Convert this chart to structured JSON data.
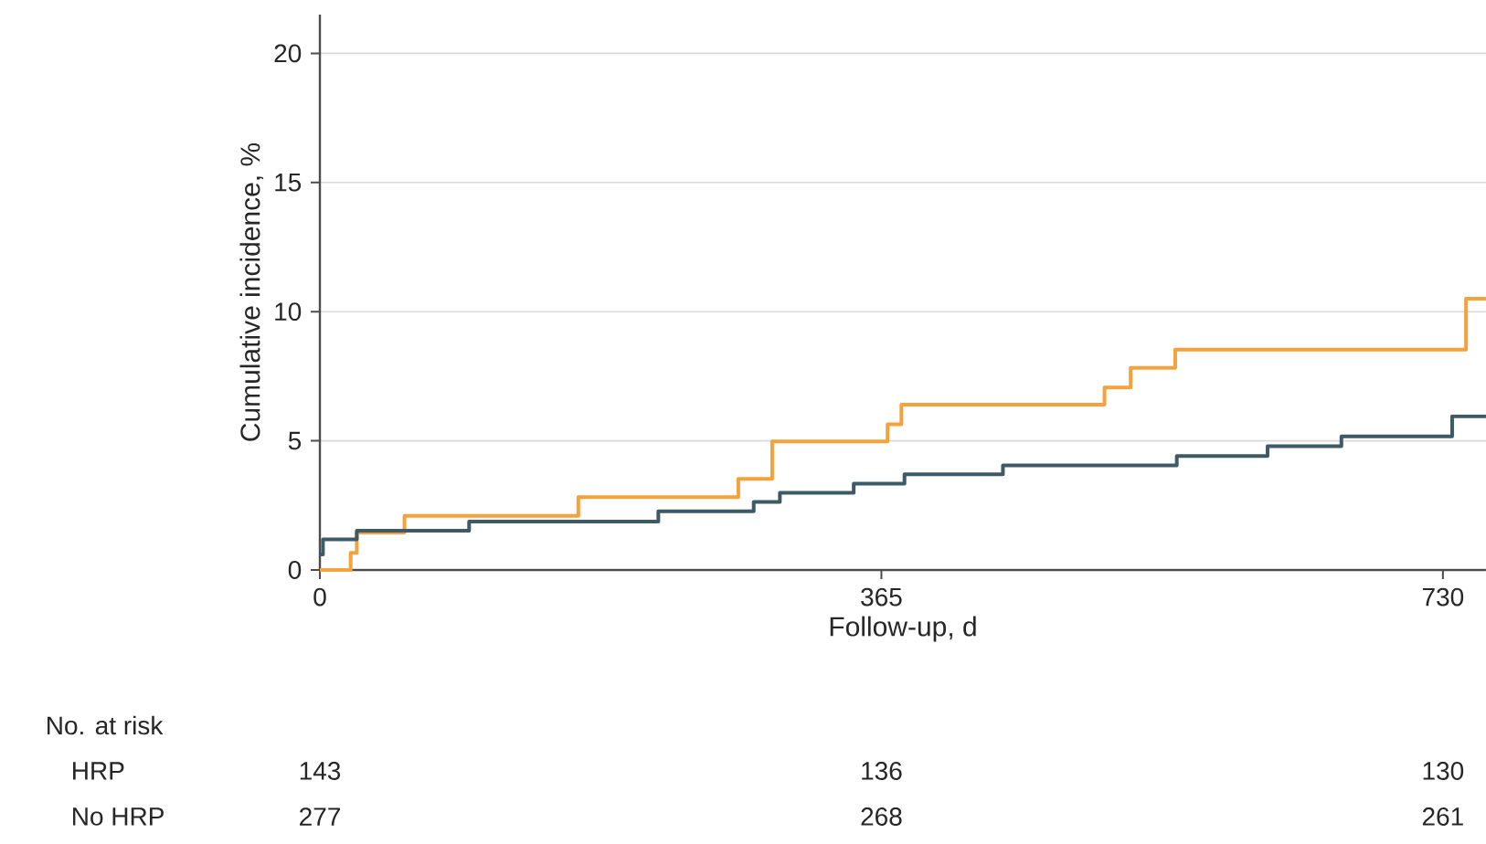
{
  "chart_data": {
    "type": "step",
    "xlabel": "Follow-up, d",
    "ylabel": "Cumulative incidence, %",
    "xlim": [
      0,
      758
    ],
    "ylim": [
      0,
      21.5
    ],
    "xticks": [
      0,
      365,
      730
    ],
    "yticks": [
      0,
      5,
      10,
      15,
      20
    ],
    "grid": "y",
    "series": [
      {
        "color": "#f5a23c",
        "x": [
          0,
          20,
          24,
          55,
          168,
          272,
          294,
          369,
          378,
          510,
          527,
          556,
          745,
          758
        ],
        "values": [
          0,
          0.66,
          1.45,
          2.09,
          2.82,
          3.53,
          4.98,
          5.64,
          6.4,
          7.06,
          7.82,
          8.53,
          10.5,
          10.5
        ]
      },
      {
        "color": "#3d5a66",
        "x": [
          0,
          2,
          24,
          97,
          220,
          282,
          299,
          347,
          380,
          444,
          557,
          616,
          664,
          736,
          758
        ],
        "values": [
          0.6,
          1.18,
          1.52,
          1.87,
          2.27,
          2.63,
          2.99,
          3.34,
          3.7,
          4.05,
          4.41,
          4.79,
          5.17,
          5.95,
          5.95
        ]
      }
    ],
    "annotations": [
      "No. at risk",
      "HRP",
      "143",
      "136",
      "130",
      "No HRP",
      "277",
      "268",
      "261"
    ]
  }
}
